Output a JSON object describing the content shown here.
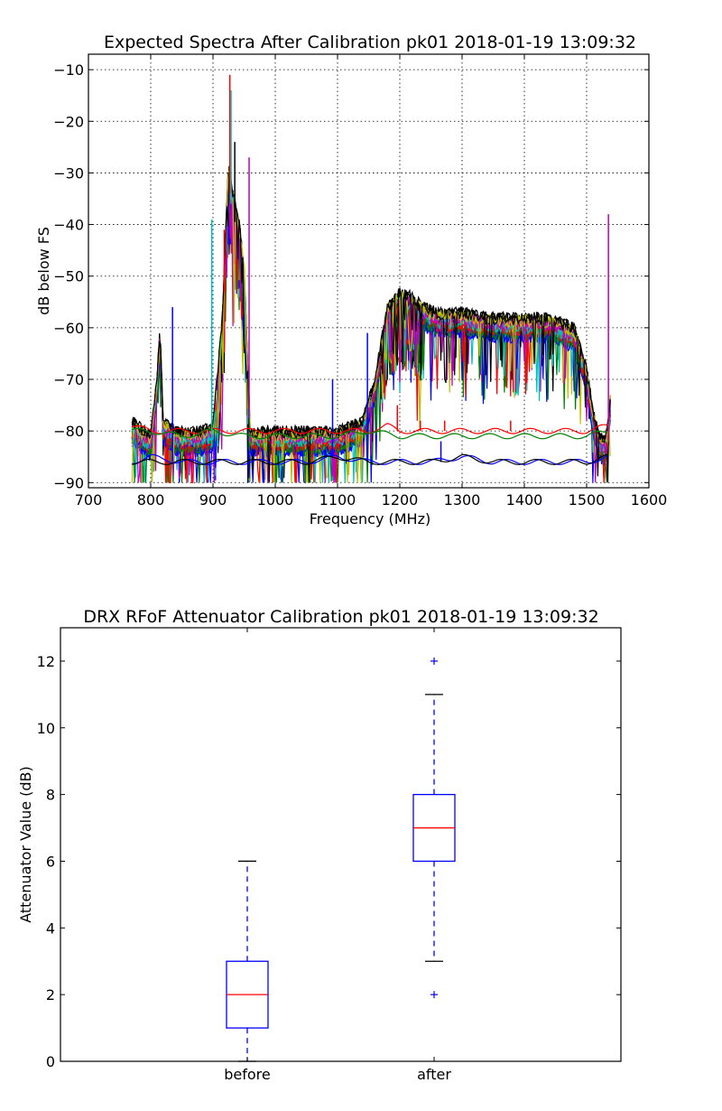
{
  "chart_data": [
    {
      "type": "line",
      "title": "Expected Spectra After Calibration pk01 2018-01-19 13:09:32",
      "xlabel": "Frequency (MHz)",
      "ylabel": "dB below FS",
      "xlim": [
        700,
        1600
      ],
      "ylim": [
        -91,
        -7
      ],
      "xticks": [
        700,
        800,
        900,
        1000,
        1100,
        1200,
        1300,
        1400,
        1500,
        1600
      ],
      "yticks": [
        -90,
        -80,
        -70,
        -60,
        -50,
        -40,
        -30,
        -20,
        -10
      ],
      "xtick_labels": [
        "700",
        "800",
        "900",
        "1000",
        "1100",
        "1200",
        "1300",
        "1400",
        "1500",
        "1600"
      ],
      "ytick_labels": [
        "−90",
        "−80",
        "−70",
        "−60",
        "−50",
        "−40",
        "−30",
        "−20",
        "−10"
      ],
      "grid": true,
      "colors": [
        "#0000ff",
        "#008000",
        "#ff0000",
        "#00bfbf",
        "#bf00bf",
        "#bfbf00",
        "#000000"
      ],
      "envelope": {
        "x": [
          770,
          790,
          800,
          810,
          815,
          820,
          840,
          860,
          880,
          900,
          915,
          925,
          930,
          940,
          950,
          960,
          980,
          1000,
          1050,
          1100,
          1140,
          1160,
          1180,
          1200,
          1220,
          1240,
          1260,
          1300,
          1350,
          1400,
          1440,
          1460,
          1480,
          1500,
          1510,
          1520,
          1530,
          1535,
          1538
        ],
        "y": [
          -80,
          -82,
          -83,
          -72,
          -62,
          -80,
          -82,
          -82,
          -82,
          -81,
          -60,
          -30,
          -35,
          -40,
          -50,
          -82,
          -82,
          -82,
          -82,
          -82,
          -80,
          -72,
          -58,
          -55,
          -56,
          -58,
          -59,
          -59,
          -60,
          -60,
          -60,
          -61,
          -62,
          -70,
          -78,
          -83,
          -84,
          -80,
          -75
        ]
      },
      "series": [
        {
          "values": [
            [
              770,
              -86
            ],
            [
              800,
              -85
            ],
            [
              850,
              -86
            ],
            [
              900,
              -86
            ],
            [
              950,
              -86
            ],
            [
              1000,
              -86
            ],
            [
              1050,
              -86
            ],
            [
              1100,
              -85
            ],
            [
              1150,
              -86
            ],
            [
              1200,
              -86
            ],
            [
              1250,
              -86
            ],
            [
              1300,
              -85
            ],
            [
              1350,
              -86
            ],
            [
              1400,
              -86
            ],
            [
              1450,
              -86
            ],
            [
              1500,
              -86
            ],
            [
              1535,
              -85
            ]
          ],
          "spikes": [
            [
              835,
              -56
            ],
            [
              1092,
              -70
            ],
            [
              1148,
              -61
            ],
            [
              1266,
              -82
            ]
          ]
        },
        {
          "values": [
            [
              770,
              -86
            ],
            [
              800,
              -86
            ],
            [
              850,
              -86
            ],
            [
              900,
              -86
            ],
            [
              950,
              -86
            ],
            [
              1000,
              -86
            ],
            [
              1050,
              -86
            ],
            [
              1100,
              -85
            ],
            [
              1150,
              -86
            ],
            [
              1200,
              -86
            ],
            [
              1250,
              -86
            ],
            [
              1300,
              -85
            ],
            [
              1350,
              -86
            ],
            [
              1400,
              -86
            ],
            [
              1450,
              -86
            ],
            [
              1500,
              -86
            ],
            [
              1535,
              -85
            ]
          ]
        },
        {
          "values": [
            [
              770,
              -79
            ],
            [
              800,
              -80
            ],
            [
              850,
              -80
            ],
            [
              900,
              -80
            ],
            [
              950,
              -80
            ],
            [
              1000,
              -80
            ],
            [
              1050,
              -80
            ],
            [
              1100,
              -80
            ],
            [
              1150,
              -80
            ],
            [
              1180,
              -79
            ],
            [
              1200,
              -80
            ],
            [
              1250,
              -80
            ],
            [
              1300,
              -80
            ],
            [
              1350,
              -80
            ],
            [
              1400,
              -80
            ],
            [
              1450,
              -80
            ],
            [
              1500,
              -80
            ],
            [
              1535,
              -79
            ]
          ],
          "spikes": [
            [
              1196,
              -75
            ],
            [
              1233,
              -78
            ],
            [
              1272,
              -78
            ],
            [
              1378,
              -78
            ]
          ]
        },
        {
          "values": [
            [
              770,
              -80
            ],
            [
              800,
              -80
            ],
            [
              850,
              -81
            ],
            [
              900,
              -80
            ],
            [
              950,
              -81
            ],
            [
              1000,
              -81
            ],
            [
              1050,
              -81
            ],
            [
              1100,
              -81
            ],
            [
              1150,
              -80
            ],
            [
              1200,
              -81
            ],
            [
              1250,
              -81
            ],
            [
              1300,
              -81
            ],
            [
              1350,
              -81
            ],
            [
              1400,
              -81
            ],
            [
              1450,
              -81
            ],
            [
              1500,
              -81
            ],
            [
              1535,
              -80
            ]
          ]
        }
      ]
    },
    {
      "type": "box",
      "title": "DRX RFoF Attenuator Calibration pk01 2018-01-19 13:09:32",
      "xlabel": "",
      "ylabel": "Attenuator Value (dB)",
      "categories": [
        "before",
        "after"
      ],
      "ylim": [
        0,
        13
      ],
      "yticks": [
        0,
        2,
        4,
        6,
        8,
        10,
        12
      ],
      "ytick_labels": [
        "0",
        "2",
        "4",
        "6",
        "8",
        "10",
        "12"
      ],
      "boxes": [
        {
          "name": "before",
          "whisker_low": 0,
          "q1": 1,
          "median": 2,
          "q3": 3,
          "whisker_high": 6,
          "fliers": []
        },
        {
          "name": "after",
          "whisker_low": 3,
          "q1": 6,
          "median": 7,
          "q3": 8,
          "whisker_high": 11,
          "fliers": [
            2,
            12
          ]
        }
      ]
    }
  ]
}
